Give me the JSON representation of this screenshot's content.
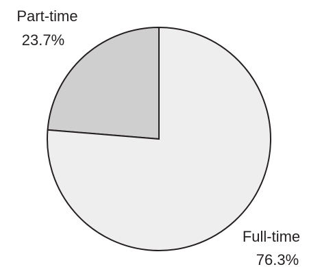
{
  "chart_data": {
    "type": "pie",
    "slices": [
      {
        "label": "Part-time",
        "percent_label": "23.7%",
        "value": 23.7,
        "color": "#cfcfcf"
      },
      {
        "label": "Full-time",
        "percent_label": "76.3%",
        "value": 76.3,
        "color": "#eeeeee"
      }
    ],
    "start": "12 o'clock",
    "direction": "counter-clockwise for Part-time",
    "outline_color": "#231f20"
  }
}
